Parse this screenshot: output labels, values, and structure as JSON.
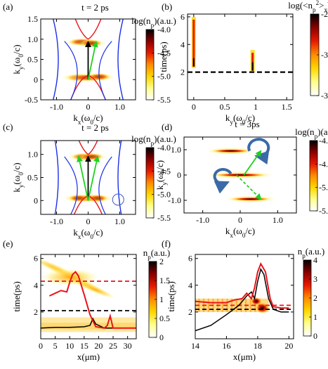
{
  "colors": {
    "dispersion_red": "#e8141a",
    "dispersion_blue": "#1a2ee8",
    "arrow_black": "#000000",
    "arrow_green": "#1fd11f",
    "curl_arrow": "#3a6aa8",
    "circle": "#3a5ac0",
    "dashed_black": "#000000",
    "dashed_red": "#e8141a",
    "line_red": "#e8141a",
    "line_black": "#000000"
  },
  "colormap": [
    "#ffffff",
    "#ffff8c",
    "#ffd700",
    "#ff8c00",
    "#e81a00",
    "#8b0000",
    "#000000"
  ],
  "chart_data": [
    {
      "id": "a",
      "panel_label": "(a)",
      "type": "heatmap",
      "annotation": "t = 2 ps",
      "colorbar_title": "log(n_p)(a.u.)",
      "colorbar_ticks": [
        "-4.0",
        "-4.5",
        "-5.0",
        "-5.5"
      ],
      "colorbar_range": [
        -5.5,
        -4.0
      ],
      "xlabel": "k_x(ω_0/c)",
      "ylabel": "k_y(ω_0/c)",
      "xticks": [
        -1.0,
        0,
        1.0
      ],
      "yticks": [
        -0.5,
        0,
        0.5,
        1.0,
        1.5
      ],
      "xlim": [
        -1.5,
        1.5
      ],
      "ylim": [
        -0.5,
        1.5
      ],
      "hotspots": [
        [
          -0.2,
          0.93,
          0.65
        ],
        [
          0.1,
          0.9,
          0.55
        ],
        [
          -0.3,
          0.05,
          0.6
        ],
        [
          0.0,
          0.05,
          0.95
        ],
        [
          0.35,
          0.07,
          0.55
        ]
      ],
      "arrows": [
        {
          "color": "black",
          "from": [
            0.0,
            0.0
          ],
          "to": [
            0.0,
            0.93
          ]
        },
        {
          "color": "green",
          "from": [
            0.0,
            0.0
          ],
          "to": [
            0.25,
            0.93
          ]
        }
      ],
      "circle": null
    },
    {
      "id": "b",
      "panel_label": "(b)",
      "type": "heatmap",
      "colorbar_title": "log(<n_p^2>_x)(a.u.)",
      "colorbar_ticks": [
        "-2.5",
        "-3.0",
        "-3.5"
      ],
      "colorbar_range": [
        -3.5,
        -2.5
      ],
      "xlabel": "k_y(ω_0/c)",
      "ylabel": "time(ps)",
      "xticks": [
        0,
        0.5,
        1,
        1.5
      ],
      "yticks": [
        2,
        4,
        6
      ],
      "xlim": [
        -0.1,
        1.6
      ],
      "ylim": [
        0,
        6.2
      ],
      "streaks": [
        {
          "x": 0.0,
          "y0": 2.3,
          "y1": 6.0
        },
        {
          "x": 0.95,
          "y0": 2.0,
          "y1": 3.6
        }
      ],
      "dashed_time": 2.0
    },
    {
      "id": "c",
      "panel_label": "(c)",
      "type": "heatmap",
      "annotation": "t = 2 ps",
      "colorbar_title": "log(n_p)(a.u.)",
      "colorbar_ticks": [
        "-4.0",
        "-4.5",
        "-5.0",
        "-5.5"
      ],
      "colorbar_range": [
        -5.5,
        -4.0
      ],
      "xlabel": "k_x(ω_0/c)",
      "ylabel": "k_y(ω_0/c)",
      "xticks": [
        -1.0,
        0,
        1.0
      ],
      "yticks": [
        0,
        0.5,
        1.0
      ],
      "xlim": [
        -1.5,
        1.5
      ],
      "ylim": [
        -0.3,
        1.3
      ],
      "hotspots": [
        [
          -0.15,
          0.95,
          0.6
        ],
        [
          0.1,
          0.95,
          0.6
        ],
        [
          0.0,
          0.05,
          0.95
        ],
        [
          -0.3,
          0.05,
          0.5
        ],
        [
          0.3,
          0.05,
          0.5
        ]
      ],
      "arrows": [
        {
          "color": "black",
          "from": [
            0.0,
            0.0
          ],
          "to": [
            0.0,
            0.95
          ]
        },
        {
          "color": "green",
          "from": [
            0.0,
            0.0
          ],
          "to": [
            -0.3,
            0.95
          ]
        },
        {
          "color": "green",
          "from": [
            0.0,
            0.0
          ],
          "to": [
            0.3,
            0.95
          ]
        }
      ],
      "circle": {
        "x": 0.95,
        "y": 0.02
      }
    },
    {
      "id": "d",
      "panel_label": "(d)",
      "type": "heatmap",
      "annotation": "t = 3ps",
      "colorbar_title": "log(n_p)(a.u.)",
      "colorbar_ticks": [
        "-4.0",
        "-4.5",
        "-5.0",
        "-5.5"
      ],
      "colorbar_range": [
        -5.5,
        -4.0
      ],
      "xlabel": "k_x(ω_0/c)",
      "ylabel": "k_y(ω_0/c)",
      "xticks": [
        -1.0,
        0,
        1.0
      ],
      "yticks": [
        -1.0,
        0,
        1.0
      ],
      "xlim": [
        -1.5,
        1.5
      ],
      "ylim": [
        -1.5,
        1.5
      ],
      "bands": [
        {
          "y": 0.95,
          "x0": -0.9,
          "x1": 0.4
        },
        {
          "y": 0.0,
          "x0": -0.9,
          "x1": 0.9
        },
        {
          "y": -0.95,
          "x0": -0.4,
          "x1": 0.95
        }
      ],
      "arrows": [
        {
          "color": "green",
          "from": [
            0.1,
            0.0
          ],
          "to": [
            0.55,
            0.95
          ],
          "dashed": false
        },
        {
          "color": "green",
          "from": [
            -0.1,
            0.0
          ],
          "to": [
            0.55,
            -0.95
          ],
          "dashed": true
        }
      ]
    },
    {
      "id": "e",
      "panel_label": "(e)",
      "type": "heatmap",
      "colorbar_title": "n_p(a.u.)",
      "colorbar_ticks": [
        "2",
        "1.5",
        "1",
        "0.5",
        "0"
      ],
      "colorbar_range": [
        0,
        2
      ],
      "xlabel": "x(μm)",
      "ylabel": "time(ps)",
      "xticks": [
        0,
        5,
        10,
        15,
        20,
        25,
        30
      ],
      "yticks": [
        2,
        4,
        6
      ],
      "xlim": [
        0,
        33
      ],
      "ylim": [
        0,
        6.3
      ],
      "dashed_red_time": 4.3,
      "dashed_black_time": 2.1,
      "red_line": [
        [
          3,
          3.2
        ],
        [
          5,
          3.4
        ],
        [
          7,
          3.6
        ],
        [
          9,
          3.5
        ],
        [
          10,
          4.2
        ],
        [
          11,
          4.8
        ],
        [
          12,
          5.0
        ],
        [
          13,
          4.7
        ],
        [
          15,
          3.3
        ],
        [
          17,
          1.8
        ],
        [
          19,
          0.9
        ],
        [
          22,
          0.8
        ],
        [
          23,
          1.0
        ],
        [
          24,
          1.7
        ],
        [
          25,
          0.8
        ],
        [
          28,
          0.8
        ],
        [
          33,
          0.8
        ]
      ],
      "black_line": [
        [
          0,
          0.8
        ],
        [
          5,
          0.85
        ],
        [
          10,
          0.85
        ],
        [
          15,
          0.9
        ],
        [
          17,
          1.0
        ],
        [
          18,
          1.5
        ],
        [
          19,
          1.1
        ],
        [
          22,
          0.8
        ],
        [
          25,
          0.8
        ],
        [
          33,
          0.8
        ]
      ]
    },
    {
      "id": "f",
      "panel_label": "(f)",
      "type": "heatmap",
      "colorbar_title": "n_p(a.u.)",
      "colorbar_ticks": [
        "4",
        "3",
        "2",
        "1",
        "0"
      ],
      "colorbar_range": [
        0,
        4
      ],
      "xlabel": "x(μm)",
      "ylabel": "time(ps)",
      "xticks": [
        14,
        16,
        18,
        20
      ],
      "yticks": [
        2,
        4,
        6
      ],
      "xlim": [
        14,
        20.3
      ],
      "ylim": [
        0,
        6.3
      ],
      "dashed_red_time": 2.5,
      "dashed_black_time": 2.2,
      "red_line": [
        [
          14,
          2.8
        ],
        [
          15,
          2.7
        ],
        [
          16,
          2.7
        ],
        [
          16.5,
          2.9
        ],
        [
          17,
          3.0
        ],
        [
          17.3,
          3.4
        ],
        [
          17.6,
          3.0
        ],
        [
          17.8,
          3.8
        ],
        [
          18.0,
          5.0
        ],
        [
          18.2,
          5.6
        ],
        [
          18.5,
          5.0
        ],
        [
          18.8,
          3.0
        ],
        [
          19.0,
          2.4
        ],
        [
          19.5,
          2.3
        ],
        [
          20,
          2.3
        ]
      ],
      "black_line": [
        [
          14,
          0.6
        ],
        [
          15,
          1.0
        ],
        [
          16,
          1.8
        ],
        [
          16.8,
          2.5
        ],
        [
          17.3,
          3.2
        ],
        [
          17.6,
          3.5
        ],
        [
          17.8,
          3.0
        ],
        [
          18.0,
          4.3
        ],
        [
          18.2,
          5.2
        ],
        [
          18.4,
          4.8
        ],
        [
          18.7,
          3.0
        ],
        [
          19.0,
          2.2
        ],
        [
          19.5,
          2.0
        ],
        [
          20,
          2.0
        ]
      ]
    }
  ]
}
